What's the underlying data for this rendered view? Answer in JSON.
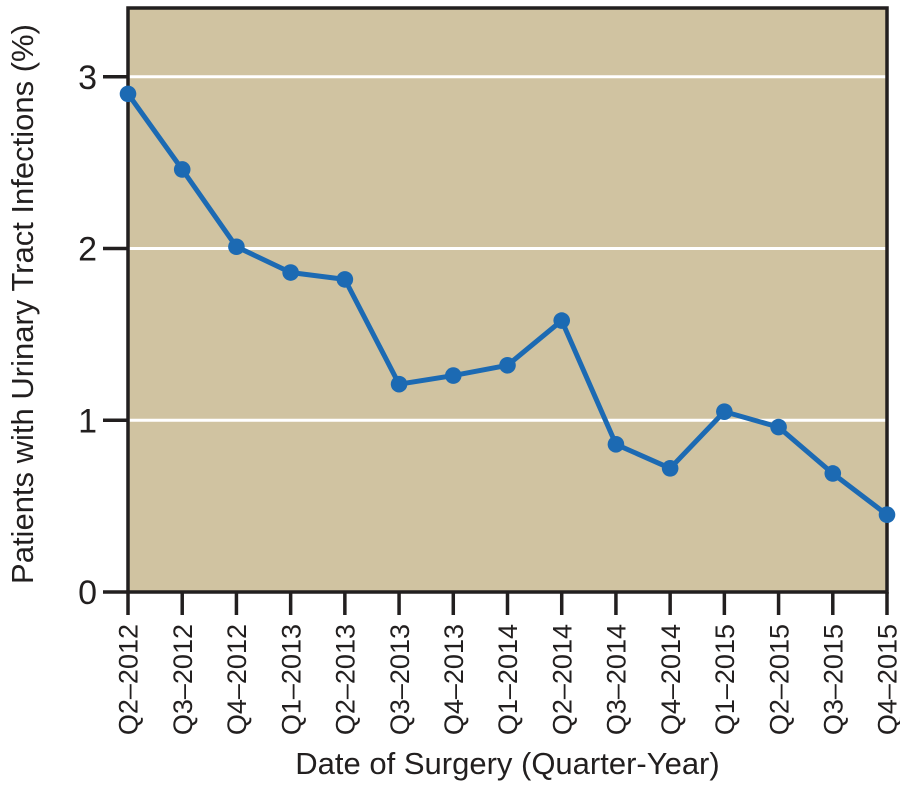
{
  "chart_data": {
    "type": "line",
    "title": "",
    "xlabel": "Date of Surgery (Quarter-Year)",
    "ylabel": "Patients with Urinary Tract Infections (%)",
    "categories": [
      "Q2–2012",
      "Q3–2012",
      "Q4–2012",
      "Q1–2013",
      "Q2–2013",
      "Q3–2013",
      "Q4–2013",
      "Q1–2014",
      "Q2–2014",
      "Q3–2014",
      "Q4–2014",
      "Q1–2015",
      "Q2–2015",
      "Q3–2015",
      "Q4–2015"
    ],
    "values": [
      2.9,
      2.46,
      2.01,
      1.86,
      1.82,
      1.21,
      1.26,
      1.32,
      1.58,
      0.86,
      0.72,
      1.05,
      0.96,
      0.69,
      0.45
    ],
    "ylim": [
      0,
      3.4
    ],
    "yticks": [
      0,
      1,
      2,
      3
    ],
    "gridline_values": [
      1,
      2,
      3
    ],
    "grid": "horizontal",
    "legend_position": "none",
    "marker": "circle",
    "colors": {
      "line": "#1c6ab3",
      "marker": "#1c6ab3",
      "plot_background": "#d0c3a1",
      "gridline": "#ffffff",
      "axis": "#221f1f",
      "text": "#221f1f",
      "page_background": "#ffffff"
    }
  }
}
